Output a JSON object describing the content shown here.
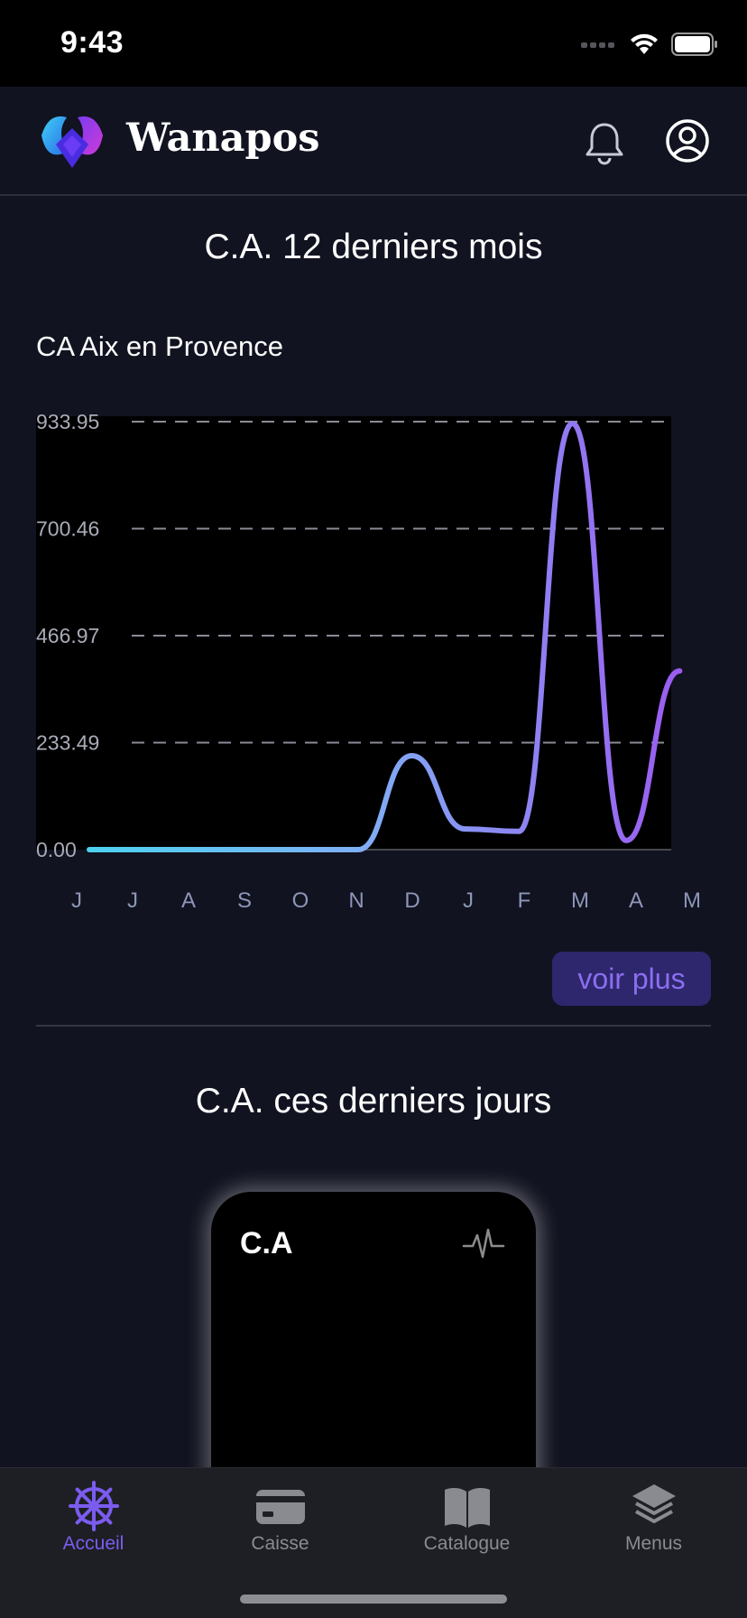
{
  "status_bar": {
    "time": "9:43",
    "icons": [
      "signal-icon",
      "wifi-icon",
      "battery-icon"
    ]
  },
  "header": {
    "brand": "Wanapos",
    "icons": [
      "app-logo-icon",
      "bell-icon",
      "user-circle-icon"
    ]
  },
  "section_year": {
    "title": "C.A. 12 derniers mois",
    "subtitle": "CA Aix en Provence",
    "more_button": "voir plus"
  },
  "section_days": {
    "title": "C.A. ces derniers jours",
    "card_label": "C.A",
    "card_icon": "pulse-icon"
  },
  "tabs": [
    {
      "label": "Accueil",
      "icon": "ship-wheel-icon",
      "active": true
    },
    {
      "label": "Caisse",
      "icon": "card-icon",
      "active": false
    },
    {
      "label": "Catalogue",
      "icon": "book-icon",
      "active": false
    },
    {
      "label": "Menus",
      "icon": "layers-icon",
      "active": false
    }
  ],
  "colors": {
    "background": "#111320",
    "accent": "#7b5cf0",
    "line_start": "#4dd2f0",
    "line_end": "#9b5cf0",
    "button_bg": "#2e276e"
  },
  "chart_data": {
    "type": "line",
    "title": "",
    "categories": [
      "J",
      "J",
      "A",
      "S",
      "O",
      "N",
      "D",
      "J",
      "F",
      "M",
      "A",
      "M"
    ],
    "series": [
      {
        "values": [
          0,
          0,
          0,
          0,
          0,
          0,
          205,
          45,
          40,
          930,
          20,
          390
        ]
      }
    ],
    "y_ticks": [
      "933.95",
      "700.46",
      "466.97",
      "233.49",
      "0.00"
    ],
    "ylim": [
      0,
      933.95
    ],
    "grid": true,
    "smooth": true
  }
}
